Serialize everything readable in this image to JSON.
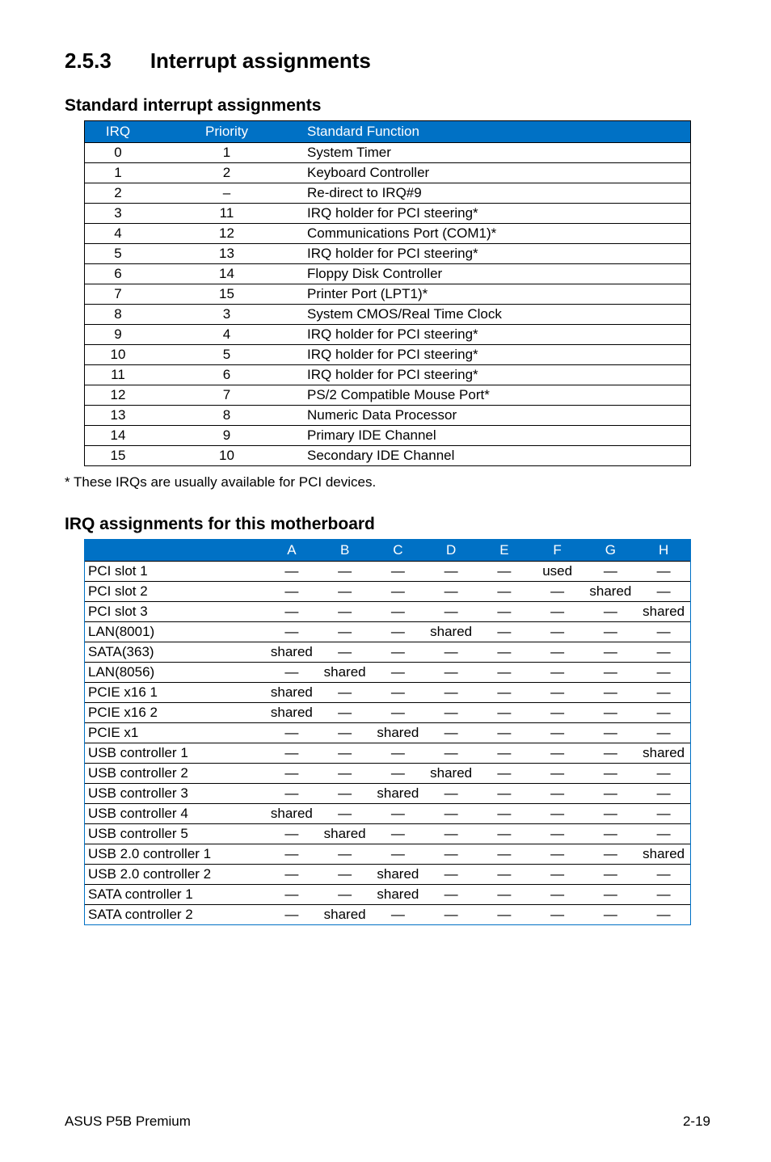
{
  "heading": {
    "number": "2.5.3",
    "title": "Interrupt assignments"
  },
  "std_interrupt": {
    "title": "Standard interrupt assignments",
    "columns": {
      "irq": "IRQ",
      "priority": "Priority",
      "func": "Standard Function"
    },
    "rows": [
      {
        "irq": "0",
        "priority": "1",
        "func": "System Timer"
      },
      {
        "irq": "1",
        "priority": "2",
        "func": "Keyboard Controller"
      },
      {
        "irq": "2",
        "priority": "–",
        "func": "Re-direct to IRQ#9"
      },
      {
        "irq": "3",
        "priority": "11",
        "func": "IRQ holder for PCI steering*"
      },
      {
        "irq": "4",
        "priority": "12",
        "func": "Communications Port (COM1)*"
      },
      {
        "irq": "5",
        "priority": "13",
        "func": "IRQ holder for PCI steering*"
      },
      {
        "irq": "6",
        "priority": "14",
        "func": "Floppy Disk Controller"
      },
      {
        "irq": "7",
        "priority": "15",
        "func": "Printer Port (LPT1)*"
      },
      {
        "irq": "8",
        "priority": "3",
        "func": "System CMOS/Real Time Clock"
      },
      {
        "irq": "9",
        "priority": "4",
        "func": "IRQ holder for PCI steering*"
      },
      {
        "irq": "10",
        "priority": "5",
        "func": "IRQ holder for PCI steering*"
      },
      {
        "irq": "11",
        "priority": "6",
        "func": "IRQ holder for PCI steering*"
      },
      {
        "irq": "12",
        "priority": "7",
        "func": "PS/2 Compatible Mouse Port*"
      },
      {
        "irq": "13",
        "priority": "8",
        "func": "Numeric Data Processor"
      },
      {
        "irq": "14",
        "priority": "9",
        "func": "Primary IDE Channel"
      },
      {
        "irq": "15",
        "priority": "10",
        "func": "Secondary IDE Channel"
      }
    ],
    "footnote": "* These IRQs are usually available for PCI devices."
  },
  "irq_assign": {
    "title": "IRQ assignments for this motherboard",
    "columns": [
      "",
      "A",
      "B",
      "C",
      "D",
      "E",
      "F",
      "G",
      "H"
    ],
    "rows": [
      {
        "dev": "PCI slot 1",
        "cells": [
          "—",
          "—",
          "—",
          "—",
          "—",
          "used",
          "—",
          "—"
        ]
      },
      {
        "dev": "PCI slot 2",
        "cells": [
          "—",
          "—",
          "—",
          "—",
          "—",
          "—",
          "shared",
          "—"
        ]
      },
      {
        "dev": "PCI slot 3",
        "cells": [
          "—",
          "—",
          "—",
          "—",
          "—",
          "—",
          "—",
          "shared"
        ]
      },
      {
        "dev": "LAN(8001)",
        "cells": [
          "—",
          "—",
          "—",
          "shared",
          "—",
          "—",
          "—",
          "—"
        ]
      },
      {
        "dev": "SATA(363)",
        "cells": [
          "shared",
          "—",
          "—",
          "—",
          "—",
          "—",
          "—",
          "—"
        ]
      },
      {
        "dev": "LAN(8056)",
        "cells": [
          "—",
          "shared",
          "—",
          "—",
          "—",
          "—",
          "—",
          "—"
        ]
      },
      {
        "dev": "PCIE x16 1",
        "cells": [
          "shared",
          "—",
          "—",
          "—",
          "—",
          "—",
          "—",
          "—"
        ]
      },
      {
        "dev": "PCIE x16 2",
        "cells": [
          "shared",
          "—",
          "—",
          "—",
          "—",
          "—",
          "—",
          "—"
        ]
      },
      {
        "dev": "PCIE x1",
        "cells": [
          "—",
          "—",
          "shared",
          "—",
          "—",
          "—",
          "—",
          "—"
        ]
      },
      {
        "dev": "USB controller 1",
        "cells": [
          "—",
          "—",
          "—",
          "—",
          "—",
          "—",
          "—",
          "shared"
        ]
      },
      {
        "dev": "USB controller 2",
        "cells": [
          "—",
          "—",
          "—",
          "shared",
          "—",
          "—",
          "—",
          "—"
        ]
      },
      {
        "dev": "USB controller 3",
        "cells": [
          "—",
          "—",
          "shared",
          "—",
          "—",
          "—",
          "—",
          "—"
        ]
      },
      {
        "dev": "USB controller 4",
        "cells": [
          "shared",
          "—",
          "—",
          "—",
          "—",
          "—",
          "—",
          "—"
        ]
      },
      {
        "dev": "USB controller 5",
        "cells": [
          "—",
          "shared",
          "—",
          "—",
          "—",
          "—",
          "—",
          "—"
        ]
      },
      {
        "dev": "USB 2.0 controller 1",
        "cells": [
          "—",
          "—",
          "—",
          "—",
          "—",
          "—",
          "—",
          "shared"
        ]
      },
      {
        "dev": "USB 2.0 controller 2",
        "cells": [
          "—",
          "—",
          "shared",
          "—",
          "—",
          "—",
          "—",
          "—"
        ]
      },
      {
        "dev": "SATA controller 1",
        "cells": [
          "—",
          "—",
          "shared",
          "—",
          "—",
          "—",
          "—",
          "—"
        ]
      },
      {
        "dev": "SATA controller 2",
        "cells": [
          "—",
          "shared",
          "—",
          "—",
          "—",
          "—",
          "—",
          "—"
        ]
      }
    ]
  },
  "footer": {
    "left": "ASUS P5B Premium",
    "right": "2-19"
  }
}
